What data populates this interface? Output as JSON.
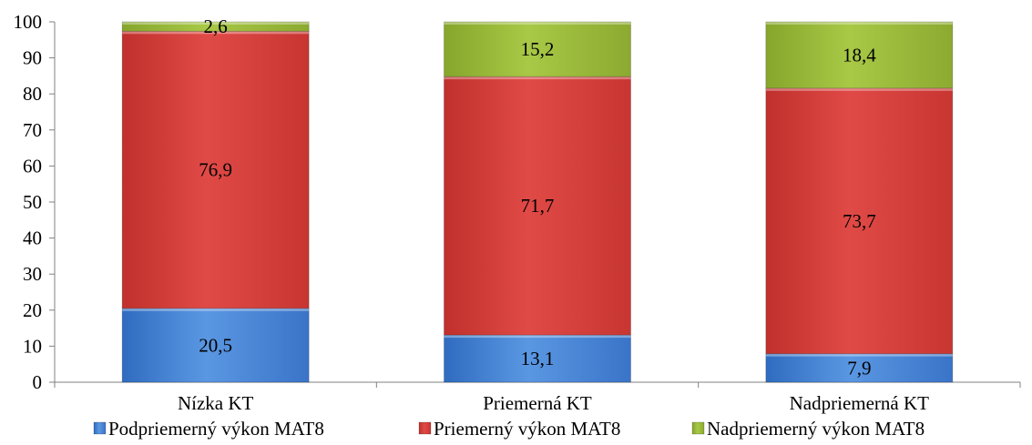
{
  "chart_data": {
    "type": "bar",
    "stacked": true,
    "categories": [
      "Nízka KT",
      "Priemerná KT",
      "Nadpriemerná KT"
    ],
    "series": [
      {
        "name": "Podpriemerný výkon MAT8",
        "values": [
          20.5,
          13.1,
          7.9
        ],
        "labels": [
          "20,5",
          "13,1",
          "7,9"
        ],
        "color": "#4a86d6"
      },
      {
        "name": "Priemerný výkon MAT8",
        "values": [
          76.9,
          71.7,
          73.7
        ],
        "labels": [
          "76,9",
          "71,7",
          "73,7"
        ],
        "color": "#d7403c"
      },
      {
        "name": "Nadpriemerný výkon MAT8",
        "values": [
          2.6,
          15.2,
          18.4
        ],
        "labels": [
          "2,6",
          "15,2",
          "18,4"
        ],
        "color": "#9bbb3c"
      }
    ],
    "ylim": [
      0,
      100
    ],
    "yticks": [
      "0",
      "10",
      "20",
      "30",
      "40",
      "50",
      "60",
      "70",
      "80",
      "90",
      "100"
    ],
    "title": "",
    "xlabel": "",
    "ylabel": "",
    "grid": false,
    "legend": "bottom"
  }
}
